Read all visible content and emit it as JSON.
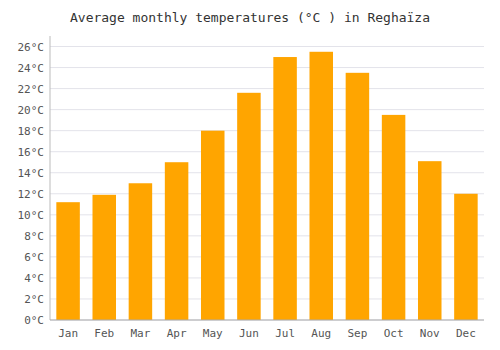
{
  "chart_data": {
    "type": "bar",
    "title": "Average monthly temperatures (°C ) in Reghaïza",
    "categories": [
      "Jan",
      "Feb",
      "Mar",
      "Apr",
      "May",
      "Jun",
      "Jul",
      "Aug",
      "Sep",
      "Oct",
      "Nov",
      "Dec"
    ],
    "values": [
      11.2,
      11.9,
      13.0,
      15.0,
      18.0,
      21.6,
      25.0,
      25.5,
      23.5,
      19.5,
      15.1,
      12.0
    ],
    "color": "#FFA500",
    "ylim": [
      0,
      27
    ],
    "yticks": [
      {
        "value": 0,
        "label": "0°C"
      },
      {
        "value": 2,
        "label": "2°C"
      },
      {
        "value": 4,
        "label": "4°C"
      },
      {
        "value": 6,
        "label": "6°C"
      },
      {
        "value": 8,
        "label": "8°C"
      },
      {
        "value": 10,
        "label": "10°C"
      },
      {
        "value": 12,
        "label": "12°C"
      },
      {
        "value": 14,
        "label": "14°C"
      },
      {
        "value": 16,
        "label": "16°C"
      },
      {
        "value": 18,
        "label": "18°C"
      },
      {
        "value": 20,
        "label": "20°C"
      },
      {
        "value": 22,
        "label": "22°C"
      },
      {
        "value": 24,
        "label": "24°C"
      },
      {
        "value": 26,
        "label": "26°C"
      }
    ],
    "grid": true
  }
}
